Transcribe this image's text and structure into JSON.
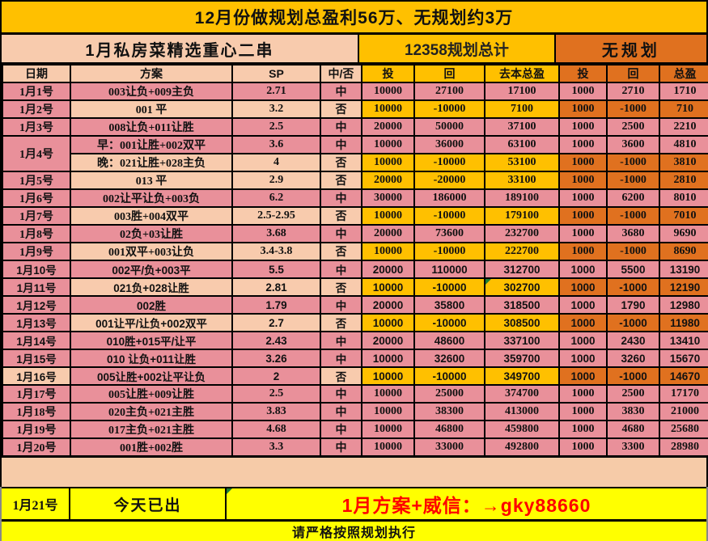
{
  "banner": {
    "title": "12月份做规划总盈利56万、无规划约3万"
  },
  "sections": {
    "left": "1月私房菜精选重心二串",
    "middle": "12358规划总计",
    "right": "无规划"
  },
  "table": {
    "headers": [
      "日期",
      "方案",
      "SP",
      "中/否",
      "投",
      "回",
      "去本总盈",
      "投",
      "回",
      "总盈"
    ],
    "rows": [
      {
        "date": "1月1号",
        "plan": "003让负+009主负",
        "sp": "2.71",
        "result": "中",
        "invest": "10000",
        "ret": "27100",
        "profit": "17100",
        "invest2": "1000",
        "ret2": "2710",
        "profit2": "1710",
        "variant": "hit"
      },
      {
        "date": "1月2号",
        "plan": "001 平",
        "sp": "3.2",
        "result": "否",
        "invest": "10000",
        "ret": "-10000",
        "profit": "7100",
        "invest2": "1000",
        "ret2": "-1000",
        "profit2": "710",
        "variant": "miss"
      },
      {
        "date": "1月3号",
        "plan": "008让负+011让胜",
        "sp": "2.5",
        "result": "中",
        "invest": "20000",
        "ret": "50000",
        "profit": "37100",
        "invest2": "1000",
        "ret2": "2500",
        "profit2": "2210",
        "variant": "hit"
      },
      {
        "date": "1月4号",
        "date_rowspan": 2,
        "plan": "早：001让胜+002双平",
        "sp": "3.6",
        "result": "中",
        "invest": "10000",
        "ret": "36000",
        "profit": "63100",
        "invest2": "1000",
        "ret2": "3600",
        "profit2": "4810",
        "variant": "hit"
      },
      {
        "date": null,
        "plan": "晚：021让胜+028主负",
        "sp": "4",
        "result": "否",
        "invest": "10000",
        "ret": "-10000",
        "profit": "53100",
        "invest2": "1000",
        "ret2": "-1000",
        "profit2": "3810",
        "variant": "miss"
      },
      {
        "date": "1月5号",
        "plan": "013 平",
        "sp": "2.9",
        "result": "否",
        "invest": "20000",
        "ret": "-20000",
        "profit": "33100",
        "invest2": "1000",
        "ret2": "-1000",
        "profit2": "2810",
        "variant": "miss"
      },
      {
        "date": "1月6号",
        "plan": "002让平让负+003负",
        "sp": "6.2",
        "result": "中",
        "invest": "30000",
        "ret": "186000",
        "profit": "189100",
        "invest2": "1000",
        "ret2": "6200",
        "profit2": "8010",
        "variant": "hit"
      },
      {
        "date": "1月7号",
        "plan": "003胜+004双平",
        "sp": "2.5-2.95",
        "result": "否",
        "invest": "10000",
        "ret": "-10000",
        "profit": "179100",
        "invest2": "1000",
        "ret2": "-1000",
        "profit2": "7010",
        "variant": "miss"
      },
      {
        "date": "1月8号",
        "plan": "02负+03让胜",
        "sp": "3.68",
        "result": "中",
        "invest": "20000",
        "ret": "73600",
        "profit": "232700",
        "invest2": "1000",
        "ret2": "3680",
        "profit2": "9690",
        "variant": "hit"
      },
      {
        "date": "1月9号",
        "plan": "001双平+003让负",
        "sp": "3.4-3.8",
        "result": "否",
        "invest": "10000",
        "ret": "-10000",
        "profit": "222700",
        "invest2": "1000",
        "ret2": "-1000",
        "profit2": "8690",
        "variant": "miss"
      },
      {
        "date": "1月10号",
        "plan": "002平/负+003平",
        "sp": "5.5",
        "result": "中",
        "invest": "20000",
        "ret": "110000",
        "profit": "312700",
        "invest2": "1000",
        "ret2": "5500",
        "profit2": "13190",
        "variant": "hit",
        "bold": true
      },
      {
        "date": "1月11号",
        "plan": "021负+028让胜",
        "sp": "2.81",
        "result": "否",
        "invest": "10000",
        "ret": "-10000",
        "profit": "302700",
        "invest2": "1000",
        "ret2": "-1000",
        "profit2": "12190",
        "variant": "miss",
        "bold": true,
        "marker": true
      },
      {
        "date": "1月12号",
        "plan": "002胜",
        "sp": "1.79",
        "result": "中",
        "invest": "20000",
        "ret": "35800",
        "profit": "318500",
        "invest2": "1000",
        "ret2": "1790",
        "profit2": "12980",
        "variant": "hit",
        "bold": true
      },
      {
        "date": "1月13号",
        "plan": "001让平/让负+002双平",
        "sp": "2.7",
        "result": "否",
        "invest": "10000",
        "ret": "-10000",
        "profit": "308500",
        "invest2": "1000",
        "ret2": "-1000",
        "profit2": "11980",
        "variant": "miss",
        "bold": true
      },
      {
        "date": "1月14号",
        "plan": "010胜+015平/让平",
        "sp": "2.43",
        "result": "中",
        "invest": "20000",
        "ret": "48600",
        "profit": "337100",
        "invest2": "1000",
        "ret2": "2430",
        "profit2": "13410",
        "variant": "hit",
        "bold": true
      },
      {
        "date": "1月15号",
        "plan": "010 让负+011让胜",
        "sp": "3.26",
        "result": "中",
        "invest": "10000",
        "ret": "32600",
        "profit": "359700",
        "invest2": "1000",
        "ret2": "3260",
        "profit2": "15670",
        "variant": "hit",
        "bold": true
      },
      {
        "date": "1月16号",
        "plan": "005让胜+002让平让负",
        "sp": "2",
        "result": "否",
        "invest": "10000",
        "ret": "-10000",
        "profit": "349700",
        "invest2": "1000",
        "ret2": "-1000",
        "profit2": "14670",
        "variant": "miss2",
        "bold": true
      },
      {
        "date": "1月17号",
        "plan": "005让胜+009让胜",
        "sp": "2.5",
        "result": "中",
        "invest": "10000",
        "ret": "25000",
        "profit": "374700",
        "invest2": "1000",
        "ret2": "2500",
        "profit2": "17170",
        "variant": "hit"
      },
      {
        "date": "1月18号",
        "plan": "020主负+021主胜",
        "sp": "3.83",
        "result": "中",
        "invest": "10000",
        "ret": "38300",
        "profit": "413000",
        "invest2": "1000",
        "ret2": "3830",
        "profit2": "21000",
        "variant": "hit"
      },
      {
        "date": "1月19号",
        "plan": "017主负+021主胜",
        "sp": "4.68",
        "result": "中",
        "invest": "10000",
        "ret": "46800",
        "profit": "459800",
        "invest2": "1000",
        "ret2": "4680",
        "profit2": "25680",
        "variant": "hit"
      },
      {
        "date": "1月20号",
        "plan": "001胜+002胜",
        "sp": "3.3",
        "result": "中",
        "invest": "10000",
        "ret": "33000",
        "profit": "492800",
        "invest2": "1000",
        "ret2": "3300",
        "profit2": "28980",
        "variant": "hit"
      }
    ]
  },
  "footer": {
    "date": "1月21号",
    "status": "今天已出",
    "promo": "1月方案+威信：→gky88660",
    "notice": "请严格按照规划执行"
  },
  "colors": {
    "banner_gold": "#FFC000",
    "peach": "#F8CBAD",
    "pink_hit": "#E9909A",
    "gold_miss": "#FFC000",
    "orange_noplan": "#E0711F",
    "footer_yellow": "#FFFF00",
    "promo_red": "#FE0000",
    "marker_green": "#1E7D32",
    "grid_black": "#000000"
  }
}
